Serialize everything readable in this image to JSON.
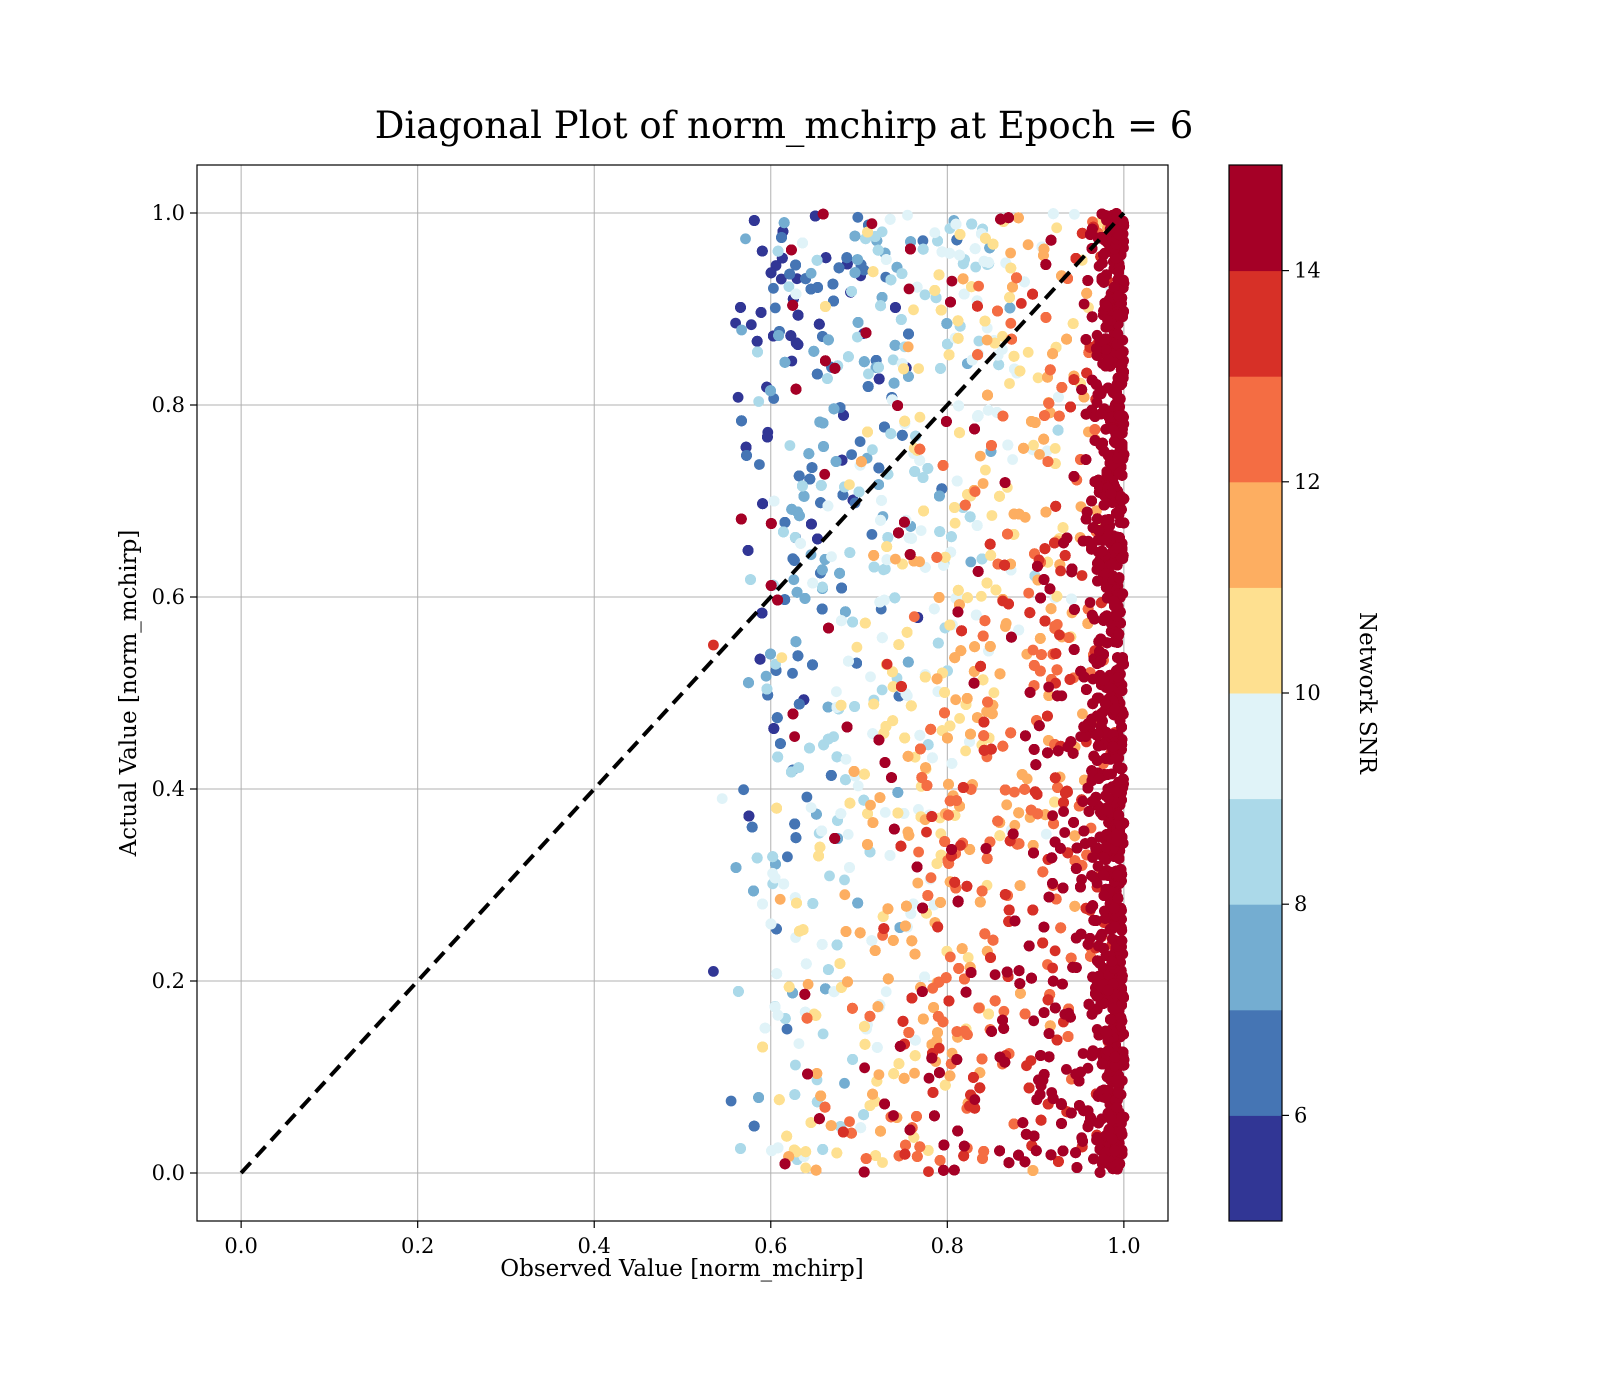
{
  "chart_data": {
    "type": "scatter",
    "title": "Diagonal Plot of norm_mchirp at Epoch = 6",
    "xlabel": "Observed Value [norm_mchirp]",
    "ylabel": "Actual Value [norm_mchirp]",
    "xlim": [
      -0.05,
      1.05
    ],
    "ylim": [
      -0.05,
      1.05
    ],
    "xticks": [
      "0.0",
      "0.2",
      "0.4",
      "0.6",
      "0.8",
      "1.0"
    ],
    "yticks": [
      "0.0",
      "0.2",
      "0.4",
      "0.6",
      "0.8",
      "1.0"
    ],
    "grid": true,
    "reference_line": {
      "from": [
        0,
        0
      ],
      "to": [
        1,
        1
      ],
      "style": "dashed",
      "color": "#000000"
    },
    "colorbar": {
      "label": "Network SNR",
      "range": [
        5,
        15
      ],
      "ticks": [
        "6",
        "8",
        "10",
        "12",
        "14"
      ],
      "tick_values": [
        6,
        8,
        10,
        12,
        14
      ],
      "levels": [
        5,
        6,
        7,
        8,
        9,
        10,
        11,
        12,
        13,
        14,
        15
      ],
      "colors": [
        "#313695",
        "#4575b4",
        "#74add1",
        "#abd9e9",
        "#e0f3f8",
        "#fee090",
        "#fdae61",
        "#f46d43",
        "#d73027",
        "#a50026"
      ]
    },
    "point_cloud": {
      "description_of_distribution": "observed values concentrated between 0.6 and 1.0; SNR increases with observed value and with lower actual value",
      "x_range": [
        0.53,
        1.0
      ],
      "y_range": [
        0.0,
        1.0
      ],
      "highlight_points": [
        {
          "x": 0.535,
          "y": 0.55,
          "snr": 13.5
        },
        {
          "x": 0.535,
          "y": 0.21,
          "snr": 5.3
        },
        {
          "x": 0.545,
          "y": 0.39,
          "snr": 9.5
        },
        {
          "x": 0.555,
          "y": 0.075,
          "snr": 6.5
        },
        {
          "x": 0.563,
          "y": 0.808,
          "snr": 5.4
        }
      ]
    }
  }
}
